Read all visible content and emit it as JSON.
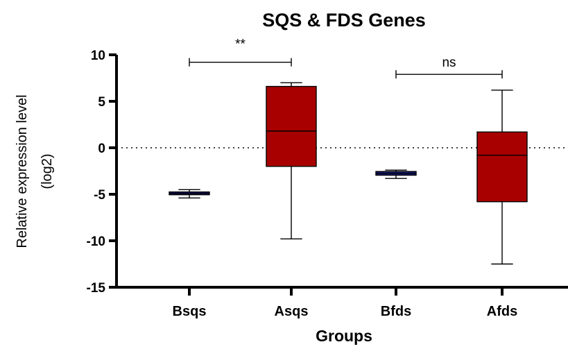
{
  "chart_data": {
    "type": "box",
    "title": "SQS & FDS Genes",
    "xlabel": "Groups",
    "ylabel_lines": [
      "Relative expression level",
      "(log2)"
    ],
    "ylim": [
      -15,
      10
    ],
    "yticks": [
      10,
      5,
      0,
      -5,
      -10,
      -15
    ],
    "categories": [
      "Bsqs",
      "Asqs",
      "Bfds",
      "Afds"
    ],
    "boxes": [
      {
        "name": "Bsqs",
        "min": -5.4,
        "q1": -5.05,
        "median": -4.9,
        "q3": -4.75,
        "max": -4.5,
        "fill": "#1a1a80"
      },
      {
        "name": "Asqs",
        "min": -9.8,
        "q1": -2.0,
        "median": 1.8,
        "q3": 6.6,
        "max": 7.0,
        "fill": "#a80000"
      },
      {
        "name": "Bfds",
        "min": -3.3,
        "q1": -2.95,
        "median": -2.75,
        "q3": -2.55,
        "max": -2.4,
        "fill": "#1a1a80"
      },
      {
        "name": "Afds",
        "min": -12.5,
        "q1": -5.8,
        "median": -0.8,
        "q3": 1.7,
        "max": 6.2,
        "fill": "#a80000"
      }
    ],
    "reference_line": {
      "y": 0,
      "style": "dotted"
    },
    "significance": [
      {
        "from": "Bsqs",
        "to": "Asqs",
        "y": 9.2,
        "label": "**"
      },
      {
        "from": "Bfds",
        "to": "Afds",
        "y": 7.9,
        "label": "ns"
      }
    ],
    "grid": false,
    "legend": "none"
  }
}
